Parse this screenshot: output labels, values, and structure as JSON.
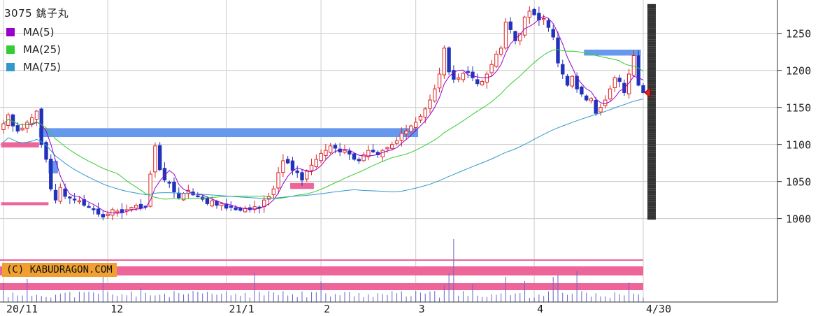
{
  "title": "3075 銚子丸",
  "credit": "(C) KABUDRAGON.COM",
  "legend": [
    {
      "label": "MA(5)",
      "color": "#9900cc"
    },
    {
      "label": "MA(25)",
      "color": "#33cc33"
    },
    {
      "label": "MA(75)",
      "color": "#3399cc"
    }
  ],
  "colors": {
    "up": "#dd2222",
    "down": "#2233bb",
    "band_blue": "#6699ee",
    "band_pink": "#ee6699",
    "volume": "#6666cc",
    "profile": "#333333",
    "grid": "#cccccc"
  },
  "chart_data": {
    "type": "candlestick",
    "ylim": [
      960,
      1295
    ],
    "yticks": [
      1000,
      1050,
      1100,
      1150,
      1200,
      1250
    ],
    "xticks": [
      {
        "label": "20/11",
        "index": 0
      },
      {
        "label": "12",
        "index": 22
      },
      {
        "label": "21/1",
        "index": 47
      },
      {
        "label": "2",
        "index": 67
      },
      {
        "label": "3",
        "index": 87
      },
      {
        "label": "4",
        "index": 112
      },
      {
        "label": "4/30",
        "index": 135
      }
    ],
    "close": [
      1128,
      1140,
      1125,
      1118,
      1122,
      1130,
      1136,
      1145,
      1100,
      1080,
      1040,
      1025,
      1042,
      1030,
      1028,
      1025,
      1024,
      1018,
      1016,
      1012,
      1006,
      1002,
      1006,
      1012,
      1010,
      1008,
      1012,
      1015,
      1018,
      1014,
      1016,
      1060,
      1098,
      1066,
      1052,
      1048,
      1036,
      1028,
      1034,
      1038,
      1032,
      1030,
      1026,
      1020,
      1024,
      1018,
      1020,
      1014,
      1016,
      1012,
      1011,
      1014,
      1012,
      1016,
      1015,
      1025,
      1030,
      1040,
      1062,
      1078,
      1075,
      1065,
      1062,
      1052,
      1065,
      1072,
      1080,
      1088,
      1092,
      1098,
      1095,
      1090,
      1092,
      1087,
      1080,
      1078,
      1086,
      1092,
      1090,
      1086,
      1092,
      1096,
      1100,
      1105,
      1115,
      1118,
      1125,
      1130,
      1138,
      1148,
      1160,
      1175,
      1195,
      1230,
      1198,
      1188,
      1190,
      1196,
      1198,
      1190,
      1182,
      1185,
      1195,
      1208,
      1222,
      1230,
      1265,
      1255,
      1240,
      1250,
      1272,
      1280,
      1275,
      1268,
      1270,
      1258,
      1245,
      1210,
      1195,
      1180,
      1192,
      1175,
      1168,
      1160,
      1162,
      1142,
      1150,
      1160,
      1175,
      1190,
      1185,
      1170,
      1195,
      1220,
      1180,
      1170
    ]
  },
  "overlays": {
    "blue_bands": [
      {
        "start": 8,
        "end": 88,
        "low": 1110,
        "high": 1122
      },
      {
        "start": 10,
        "end": 12,
        "low": 1061,
        "high": 1078
      },
      {
        "start": 123,
        "end": 135,
        "low": 1220,
        "high": 1228
      }
    ],
    "pink_bands": [
      {
        "start": 0,
        "end": 8,
        "low": 1096,
        "high": 1103
      },
      {
        "start": 0,
        "end": 10,
        "low": 1018,
        "high": 1022
      },
      {
        "start": 61,
        "end": 66,
        "low": 1040,
        "high": 1048
      }
    ]
  }
}
